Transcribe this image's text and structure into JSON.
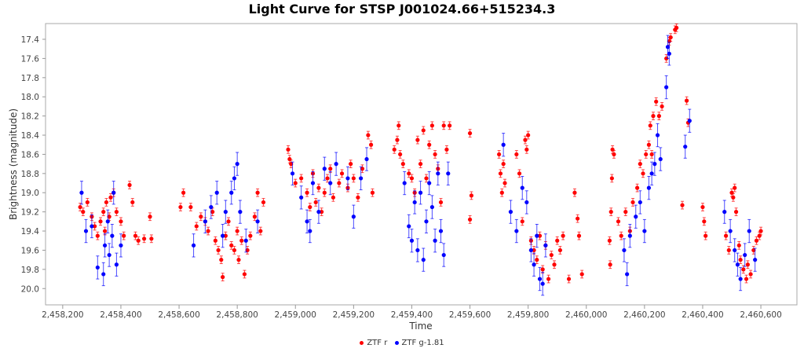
{
  "chart_data": {
    "type": "scatter",
    "title": "Light Curve for STSP J001024.66+515234.3",
    "xlabel": "Time",
    "ylabel": "Brightness (magnitude)",
    "xlim": [
      2458141,
      2460724
    ],
    "ylim": [
      20.17,
      17.236
    ],
    "y_inverted": true,
    "grid": false,
    "legend_position": "bottom",
    "xticks": [
      2458200,
      2458400,
      2458600,
      2458800,
      2459000,
      2459200,
      2459400,
      2459600,
      2459800,
      2460000,
      2460200,
      2460400,
      2460600
    ],
    "xtick_labels": [
      "2,458,200",
      "2,458,400",
      "2,458,600",
      "2,458,800",
      "2,459,000",
      "2,459,200",
      "2,459,400",
      "2,459,600",
      "2,459,800",
      "2,460,000",
      "2,460,200",
      "2,460,400",
      "2,460,600"
    ],
    "yticks": [
      17.4,
      17.6,
      17.8,
      18.0,
      18.2,
      18.4,
      18.6,
      18.8,
      19.0,
      19.2,
      19.4,
      19.6,
      19.8,
      20.0
    ],
    "ytick_labels": [
      "17.4",
      "17.6",
      "17.8",
      "18.0",
      "18.2",
      "18.4",
      "18.6",
      "18.8",
      "19.0",
      "19.2",
      "19.4",
      "19.6",
      "19.8",
      "20.0"
    ],
    "series": [
      {
        "name": "ZTF r",
        "color": "#ff0000",
        "err": 0.04,
        "points": [
          [
            2458260,
            19.15
          ],
          [
            2458270,
            19.2
          ],
          [
            2458285,
            19.1
          ],
          [
            2458300,
            19.25
          ],
          [
            2458310,
            19.35
          ],
          [
            2458320,
            19.45
          ],
          [
            2458330,
            19.3
          ],
          [
            2458340,
            19.2
          ],
          [
            2458345,
            19.4
          ],
          [
            2458350,
            19.1
          ],
          [
            2458360,
            19.25
          ],
          [
            2458365,
            19.05
          ],
          [
            2458375,
            19.0
          ],
          [
            2458385,
            19.2
          ],
          [
            2458400,
            19.3
          ],
          [
            2458410,
            19.45
          ],
          [
            2458430,
            18.92
          ],
          [
            2458440,
            19.1
          ],
          [
            2458450,
            19.45
          ],
          [
            2458460,
            19.5
          ],
          [
            2458480,
            19.48
          ],
          [
            2458500,
            19.25
          ],
          [
            2458505,
            19.48
          ],
          [
            2458605,
            19.15
          ],
          [
            2458615,
            19.0
          ],
          [
            2458640,
            19.15
          ],
          [
            2458660,
            19.35
          ],
          [
            2458675,
            19.25
          ],
          [
            2458690,
            19.3
          ],
          [
            2458700,
            19.4
          ],
          [
            2458715,
            19.2
          ],
          [
            2458725,
            19.5
          ],
          [
            2458735,
            19.6
          ],
          [
            2458745,
            19.7
          ],
          [
            2458750,
            19.88
          ],
          [
            2458760,
            19.45
          ],
          [
            2458770,
            19.3
          ],
          [
            2458780,
            19.55
          ],
          [
            2458790,
            19.6
          ],
          [
            2458800,
            19.4
          ],
          [
            2458805,
            19.7
          ],
          [
            2458815,
            19.5
          ],
          [
            2458825,
            19.85
          ],
          [
            2458835,
            19.6
          ],
          [
            2458845,
            19.45
          ],
          [
            2458860,
            19.25
          ],
          [
            2458870,
            19.0
          ],
          [
            2458880,
            19.4
          ],
          [
            2458890,
            19.1
          ],
          [
            2458975,
            18.55
          ],
          [
            2458980,
            18.65
          ],
          [
            2458985,
            18.7
          ],
          [
            2459000,
            18.9
          ],
          [
            2459020,
            18.85
          ],
          [
            2459040,
            19.0
          ],
          [
            2459050,
            19.15
          ],
          [
            2459060,
            18.8
          ],
          [
            2459070,
            19.1
          ],
          [
            2459080,
            18.95
          ],
          [
            2459090,
            19.2
          ],
          [
            2459100,
            19.0
          ],
          [
            2459110,
            18.85
          ],
          [
            2459120,
            18.75
          ],
          [
            2459130,
            19.05
          ],
          [
            2459150,
            18.9
          ],
          [
            2459160,
            18.8
          ],
          [
            2459180,
            18.95
          ],
          [
            2459190,
            18.7
          ],
          [
            2459200,
            18.85
          ],
          [
            2459215,
            19.05
          ],
          [
            2459230,
            18.75
          ],
          [
            2459250,
            18.4
          ],
          [
            2459260,
            18.5
          ],
          [
            2459265,
            19.0
          ],
          [
            2459340,
            18.55
          ],
          [
            2459350,
            18.45
          ],
          [
            2459355,
            18.3
          ],
          [
            2459360,
            18.6
          ],
          [
            2459370,
            18.7
          ],
          [
            2459390,
            18.8
          ],
          [
            2459400,
            18.85
          ],
          [
            2459410,
            19.0
          ],
          [
            2459420,
            18.45
          ],
          [
            2459430,
            18.7
          ],
          [
            2459440,
            18.35
          ],
          [
            2459450,
            18.85
          ],
          [
            2459460,
            18.5
          ],
          [
            2459470,
            18.3
          ],
          [
            2459480,
            18.6
          ],
          [
            2459490,
            18.75
          ],
          [
            2459500,
            19.1
          ],
          [
            2459510,
            18.3
          ],
          [
            2459520,
            18.55
          ],
          [
            2459530,
            18.3
          ],
          [
            2459600,
            18.38
          ],
          [
            2459605,
            19.03
          ],
          [
            2459600,
            19.28
          ],
          [
            2459700,
            18.6
          ],
          [
            2459705,
            18.8
          ],
          [
            2459710,
            19.0
          ],
          [
            2459715,
            18.7
          ],
          [
            2459720,
            18.9
          ],
          [
            2459760,
            18.6
          ],
          [
            2459770,
            18.8
          ],
          [
            2459780,
            19.3
          ],
          [
            2459790,
            18.45
          ],
          [
            2459795,
            18.55
          ],
          [
            2459800,
            18.4
          ],
          [
            2459810,
            19.5
          ],
          [
            2459820,
            19.6
          ],
          [
            2459830,
            19.7
          ],
          [
            2459840,
            19.45
          ],
          [
            2459850,
            19.8
          ],
          [
            2459860,
            19.55
          ],
          [
            2459870,
            19.9
          ],
          [
            2459880,
            19.65
          ],
          [
            2459890,
            19.75
          ],
          [
            2459900,
            19.5
          ],
          [
            2459910,
            19.6
          ],
          [
            2459920,
            19.45
          ],
          [
            2459940,
            19.9
          ],
          [
            2459960,
            19.0
          ],
          [
            2459970,
            19.27
          ],
          [
            2459975,
            19.45
          ],
          [
            2459985,
            19.85
          ],
          [
            2460080,
            19.5
          ],
          [
            2460082,
            19.75
          ],
          [
            2460085,
            19.2
          ],
          [
            2460088,
            18.85
          ],
          [
            2460090,
            18.55
          ],
          [
            2460095,
            18.6
          ],
          [
            2460110,
            19.3
          ],
          [
            2460120,
            19.45
          ],
          [
            2460135,
            19.2
          ],
          [
            2460150,
            19.4
          ],
          [
            2460160,
            19.1
          ],
          [
            2460175,
            18.95
          ],
          [
            2460185,
            18.7
          ],
          [
            2460195,
            18.8
          ],
          [
            2460205,
            18.6
          ],
          [
            2460215,
            18.5
          ],
          [
            2460220,
            18.3
          ],
          [
            2460225,
            18.6
          ],
          [
            2460230,
            18.2
          ],
          [
            2460240,
            18.05
          ],
          [
            2460250,
            18.2
          ],
          [
            2460260,
            18.1
          ],
          [
            2460275,
            17.6
          ],
          [
            2460285,
            17.42
          ],
          [
            2460290,
            17.38
          ],
          [
            2460305,
            17.3
          ],
          [
            2460310,
            17.28
          ],
          [
            2460330,
            19.13
          ],
          [
            2460345,
            18.04
          ],
          [
            2460350,
            18.27
          ],
          [
            2460400,
            19.15
          ],
          [
            2460405,
            19.3
          ],
          [
            2460410,
            19.45
          ],
          [
            2460480,
            19.45
          ],
          [
            2460490,
            19.6
          ],
          [
            2460500,
            19.0
          ],
          [
            2460505,
            19.05
          ],
          [
            2460510,
            18.95
          ],
          [
            2460515,
            19.2
          ],
          [
            2460525,
            19.55
          ],
          [
            2460530,
            19.7
          ],
          [
            2460540,
            19.8
          ],
          [
            2460550,
            19.9
          ],
          [
            2460555,
            19.75
          ],
          [
            2460565,
            19.85
          ],
          [
            2460575,
            19.6
          ],
          [
            2460585,
            19.5
          ],
          [
            2460595,
            19.45
          ],
          [
            2460600,
            19.4
          ]
        ]
      },
      {
        "name": "ZTF g-1.81",
        "color": "#0000ff",
        "err": 0.12,
        "points": [
          [
            2458265,
            19.0
          ],
          [
            2458280,
            19.4
          ],
          [
            2458300,
            19.35
          ],
          [
            2458320,
            19.78
          ],
          [
            2458340,
            19.85
          ],
          [
            2458345,
            19.55
          ],
          [
            2458355,
            19.3
          ],
          [
            2458360,
            19.65
          ],
          [
            2458370,
            19.45
          ],
          [
            2458375,
            19.0
          ],
          [
            2458385,
            19.75
          ],
          [
            2458400,
            19.55
          ],
          [
            2458650,
            19.55
          ],
          [
            2458690,
            19.3
          ],
          [
            2458710,
            19.15
          ],
          [
            2458730,
            19.0
          ],
          [
            2458750,
            19.45
          ],
          [
            2458760,
            19.2
          ],
          [
            2458780,
            19.0
          ],
          [
            2458790,
            18.85
          ],
          [
            2458800,
            18.7
          ],
          [
            2458810,
            19.2
          ],
          [
            2458830,
            19.5
          ],
          [
            2458870,
            19.3
          ],
          [
            2458990,
            18.8
          ],
          [
            2459020,
            19.05
          ],
          [
            2459040,
            19.3
          ],
          [
            2459050,
            19.4
          ],
          [
            2459060,
            18.9
          ],
          [
            2459080,
            19.2
          ],
          [
            2459100,
            18.75
          ],
          [
            2459120,
            18.9
          ],
          [
            2459140,
            18.7
          ],
          [
            2459180,
            18.85
          ],
          [
            2459200,
            19.25
          ],
          [
            2459225,
            18.85
          ],
          [
            2459245,
            18.65
          ],
          [
            2459375,
            18.9
          ],
          [
            2459390,
            19.35
          ],
          [
            2459400,
            19.5
          ],
          [
            2459410,
            19.1
          ],
          [
            2459420,
            19.6
          ],
          [
            2459430,
            19.0
          ],
          [
            2459440,
            19.7
          ],
          [
            2459450,
            19.3
          ],
          [
            2459460,
            18.9
          ],
          [
            2459470,
            19.15
          ],
          [
            2459480,
            19.5
          ],
          [
            2459490,
            18.8
          ],
          [
            2459500,
            19.4
          ],
          [
            2459510,
            19.65
          ],
          [
            2459525,
            18.8
          ],
          [
            2459715,
            18.5
          ],
          [
            2459740,
            19.2
          ],
          [
            2459760,
            19.4
          ],
          [
            2459780,
            18.95
          ],
          [
            2459795,
            19.1
          ],
          [
            2459810,
            19.6
          ],
          [
            2459820,
            19.75
          ],
          [
            2459830,
            19.45
          ],
          [
            2459840,
            19.9
          ],
          [
            2459850,
            19.95
          ],
          [
            2459860,
            19.55
          ],
          [
            2460130,
            19.6
          ],
          [
            2460140,
            19.85
          ],
          [
            2460150,
            19.45
          ],
          [
            2460170,
            19.25
          ],
          [
            2460185,
            19.1
          ],
          [
            2460200,
            19.4
          ],
          [
            2460215,
            18.95
          ],
          [
            2460225,
            18.8
          ],
          [
            2460235,
            18.7
          ],
          [
            2460245,
            18.4
          ],
          [
            2460255,
            18.65
          ],
          [
            2460275,
            17.9
          ],
          [
            2460280,
            17.48
          ],
          [
            2460285,
            17.55
          ],
          [
            2460340,
            18.52
          ],
          [
            2460355,
            18.25
          ],
          [
            2460475,
            19.2
          ],
          [
            2460495,
            19.4
          ],
          [
            2460510,
            19.6
          ],
          [
            2460520,
            19.75
          ],
          [
            2460530,
            19.9
          ],
          [
            2460545,
            19.65
          ],
          [
            2460560,
            19.4
          ],
          [
            2460580,
            19.7
          ]
        ]
      }
    ]
  }
}
